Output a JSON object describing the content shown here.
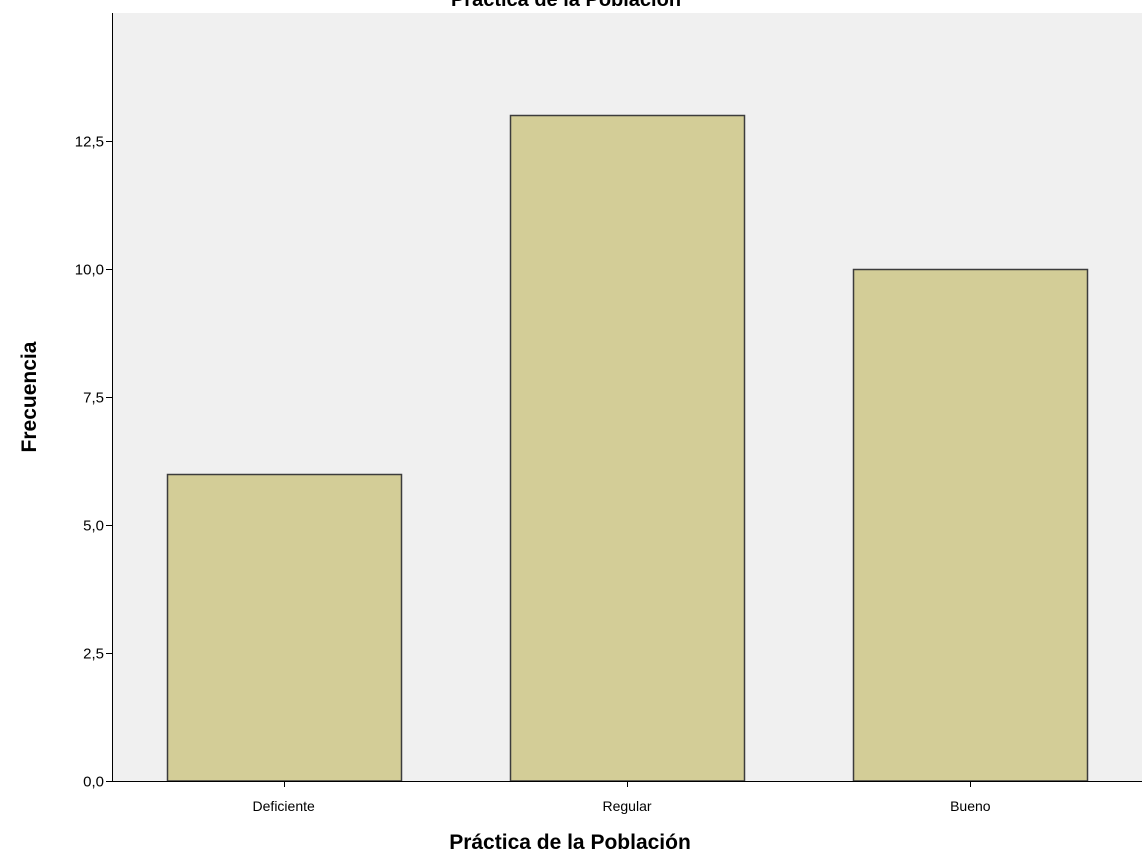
{
  "chart_data": {
    "type": "bar",
    "title": "Práctica de la Población",
    "xlabel": "Práctica de la Población",
    "ylabel": "Frecuencia",
    "categories": [
      "Deficiente",
      "Regular",
      "Bueno"
    ],
    "values": [
      6,
      13,
      10
    ],
    "ylim": [
      0,
      15
    ],
    "yticks": [
      0,
      2.5,
      5,
      7.5,
      10,
      12.5
    ],
    "ytick_labels": [
      "0,0",
      "2,5",
      "5,0",
      "7,5",
      "10,0",
      "12,5"
    ],
    "grid": false,
    "legend": "none",
    "colors": {
      "bar_fill": "#d3cd97",
      "bar_stroke": "#3c3c3c",
      "plot_background": "#f0f0f0",
      "page_background": "#ffffff",
      "axis": "#000000"
    }
  }
}
